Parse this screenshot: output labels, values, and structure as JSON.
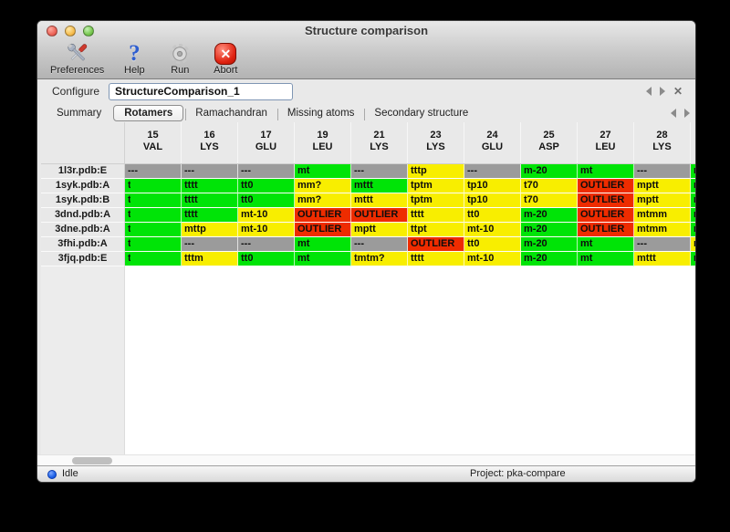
{
  "window": {
    "title": "Structure comparison"
  },
  "toolbar": {
    "items": [
      {
        "label": "Preferences",
        "icon": "tools-icon"
      },
      {
        "label": "Help",
        "icon": "question-mark-icon"
      },
      {
        "label": "Run",
        "icon": "gear-icon"
      },
      {
        "label": "Abort",
        "icon": "abort-icon"
      }
    ]
  },
  "configure": {
    "label": "Configure",
    "value": "StructureComparison_1"
  },
  "tabs": {
    "items": [
      "Summary",
      "Rotamers",
      "Ramachandran",
      "Missing atoms",
      "Secondary structure"
    ],
    "selected": "Rotamers"
  },
  "table": {
    "columns": [
      {
        "num": "15",
        "res": "VAL"
      },
      {
        "num": "16",
        "res": "LYS"
      },
      {
        "num": "17",
        "res": "GLU"
      },
      {
        "num": "19",
        "res": "LEU"
      },
      {
        "num": "21",
        "res": "LYS"
      },
      {
        "num": "23",
        "res": "LYS"
      },
      {
        "num": "24",
        "res": "GLU"
      },
      {
        "num": "25",
        "res": "ASP"
      },
      {
        "num": "27",
        "res": "LEU"
      },
      {
        "num": "28",
        "res": "LYS"
      }
    ],
    "legend": {
      "g": "green",
      "y": "yellow",
      "r": "red-outlier",
      "n": "gray-missing"
    },
    "rows": [
      {
        "name": "1l3r.pdb:E",
        "cells": [
          {
            "v": "---",
            "c": "n"
          },
          {
            "v": "---",
            "c": "n"
          },
          {
            "v": "---",
            "c": "n"
          },
          {
            "v": "mt",
            "c": "g"
          },
          {
            "v": "---",
            "c": "n"
          },
          {
            "v": "tttp",
            "c": "y"
          },
          {
            "v": "---",
            "c": "n"
          },
          {
            "v": "m-20",
            "c": "g"
          },
          {
            "v": "mt",
            "c": "g"
          },
          {
            "v": "---",
            "c": "n"
          }
        ],
        "extra": {
          "v": "m",
          "c": "g"
        }
      },
      {
        "name": "1syk.pdb:A",
        "cells": [
          {
            "v": "t",
            "c": "g",
            "clip": true
          },
          {
            "v": "tttt",
            "c": "g"
          },
          {
            "v": "tt0",
            "c": "g"
          },
          {
            "v": "mm?",
            "c": "y"
          },
          {
            "v": "mttt",
            "c": "g"
          },
          {
            "v": "tptm",
            "c": "y"
          },
          {
            "v": "tp10",
            "c": "y"
          },
          {
            "v": "t70",
            "c": "y"
          },
          {
            "v": "OUTLIER",
            "c": "r"
          },
          {
            "v": "mptt",
            "c": "y"
          }
        ],
        "extra": {
          "v": "m",
          "c": "g"
        }
      },
      {
        "name": "1syk.pdb:B",
        "cells": [
          {
            "v": "t",
            "c": "g",
            "clip": true
          },
          {
            "v": "tttt",
            "c": "g"
          },
          {
            "v": "tt0",
            "c": "g"
          },
          {
            "v": "mm?",
            "c": "y"
          },
          {
            "v": "mttt",
            "c": "y"
          },
          {
            "v": "tptm",
            "c": "y"
          },
          {
            "v": "tp10",
            "c": "y"
          },
          {
            "v": "t70",
            "c": "y"
          },
          {
            "v": "OUTLIER",
            "c": "r"
          },
          {
            "v": "mptt",
            "c": "y"
          }
        ],
        "extra": {
          "v": "m",
          "c": "g"
        }
      },
      {
        "name": "3dnd.pdb:A",
        "cells": [
          {
            "v": "t",
            "c": "g",
            "clip": true
          },
          {
            "v": "tttt",
            "c": "g"
          },
          {
            "v": "mt-10",
            "c": "y"
          },
          {
            "v": "OUTLIER",
            "c": "r"
          },
          {
            "v": "OUTLIER",
            "c": "r"
          },
          {
            "v": "tttt",
            "c": "y"
          },
          {
            "v": "tt0",
            "c": "y"
          },
          {
            "v": "m-20",
            "c": "g"
          },
          {
            "v": "OUTLIER",
            "c": "r"
          },
          {
            "v": "mtmm",
            "c": "y"
          }
        ],
        "extra": {
          "v": "m",
          "c": "g"
        }
      },
      {
        "name": "3dne.pdb:A",
        "cells": [
          {
            "v": "t",
            "c": "g",
            "clip": true
          },
          {
            "v": "mttp",
            "c": "y"
          },
          {
            "v": "mt-10",
            "c": "y"
          },
          {
            "v": "OUTLIER",
            "c": "r"
          },
          {
            "v": "mptt",
            "c": "y"
          },
          {
            "v": "ttpt",
            "c": "y"
          },
          {
            "v": "mt-10",
            "c": "y"
          },
          {
            "v": "m-20",
            "c": "g"
          },
          {
            "v": "OUTLIER",
            "c": "r"
          },
          {
            "v": "mtmm",
            "c": "y"
          }
        ],
        "extra": {
          "v": "m",
          "c": "g"
        }
      },
      {
        "name": "3fhi.pdb:A",
        "cells": [
          {
            "v": "t",
            "c": "g",
            "clip": true
          },
          {
            "v": "---",
            "c": "n"
          },
          {
            "v": "---",
            "c": "n"
          },
          {
            "v": "mt",
            "c": "g"
          },
          {
            "v": "---",
            "c": "n"
          },
          {
            "v": "OUTLIER",
            "c": "r"
          },
          {
            "v": "tt0",
            "c": "y"
          },
          {
            "v": "m-20",
            "c": "g"
          },
          {
            "v": "mt",
            "c": "g"
          },
          {
            "v": "---",
            "c": "n"
          }
        ],
        "extra": {
          "v": "m",
          "c": "y"
        }
      },
      {
        "name": "3fjq.pdb:E",
        "cells": [
          {
            "v": "t",
            "c": "g",
            "clip": true
          },
          {
            "v": "tttm",
            "c": "y"
          },
          {
            "v": "tt0",
            "c": "g"
          },
          {
            "v": "mt",
            "c": "g"
          },
          {
            "v": "tmtm?",
            "c": "y"
          },
          {
            "v": "tttt",
            "c": "y"
          },
          {
            "v": "mt-10",
            "c": "y"
          },
          {
            "v": "m-20",
            "c": "g"
          },
          {
            "v": "mt",
            "c": "g"
          },
          {
            "v": "mttt",
            "c": "y"
          }
        ],
        "extra": {
          "v": "m",
          "c": "g"
        }
      }
    ]
  },
  "statusbar": {
    "status": "Idle",
    "project": "Project: pka-compare"
  },
  "colors": {
    "green": "#00e407",
    "yellow": "#f8ee00",
    "red": "#ee2c00",
    "gray": "#9b9b9b",
    "led_blue": "#1e62e6"
  }
}
